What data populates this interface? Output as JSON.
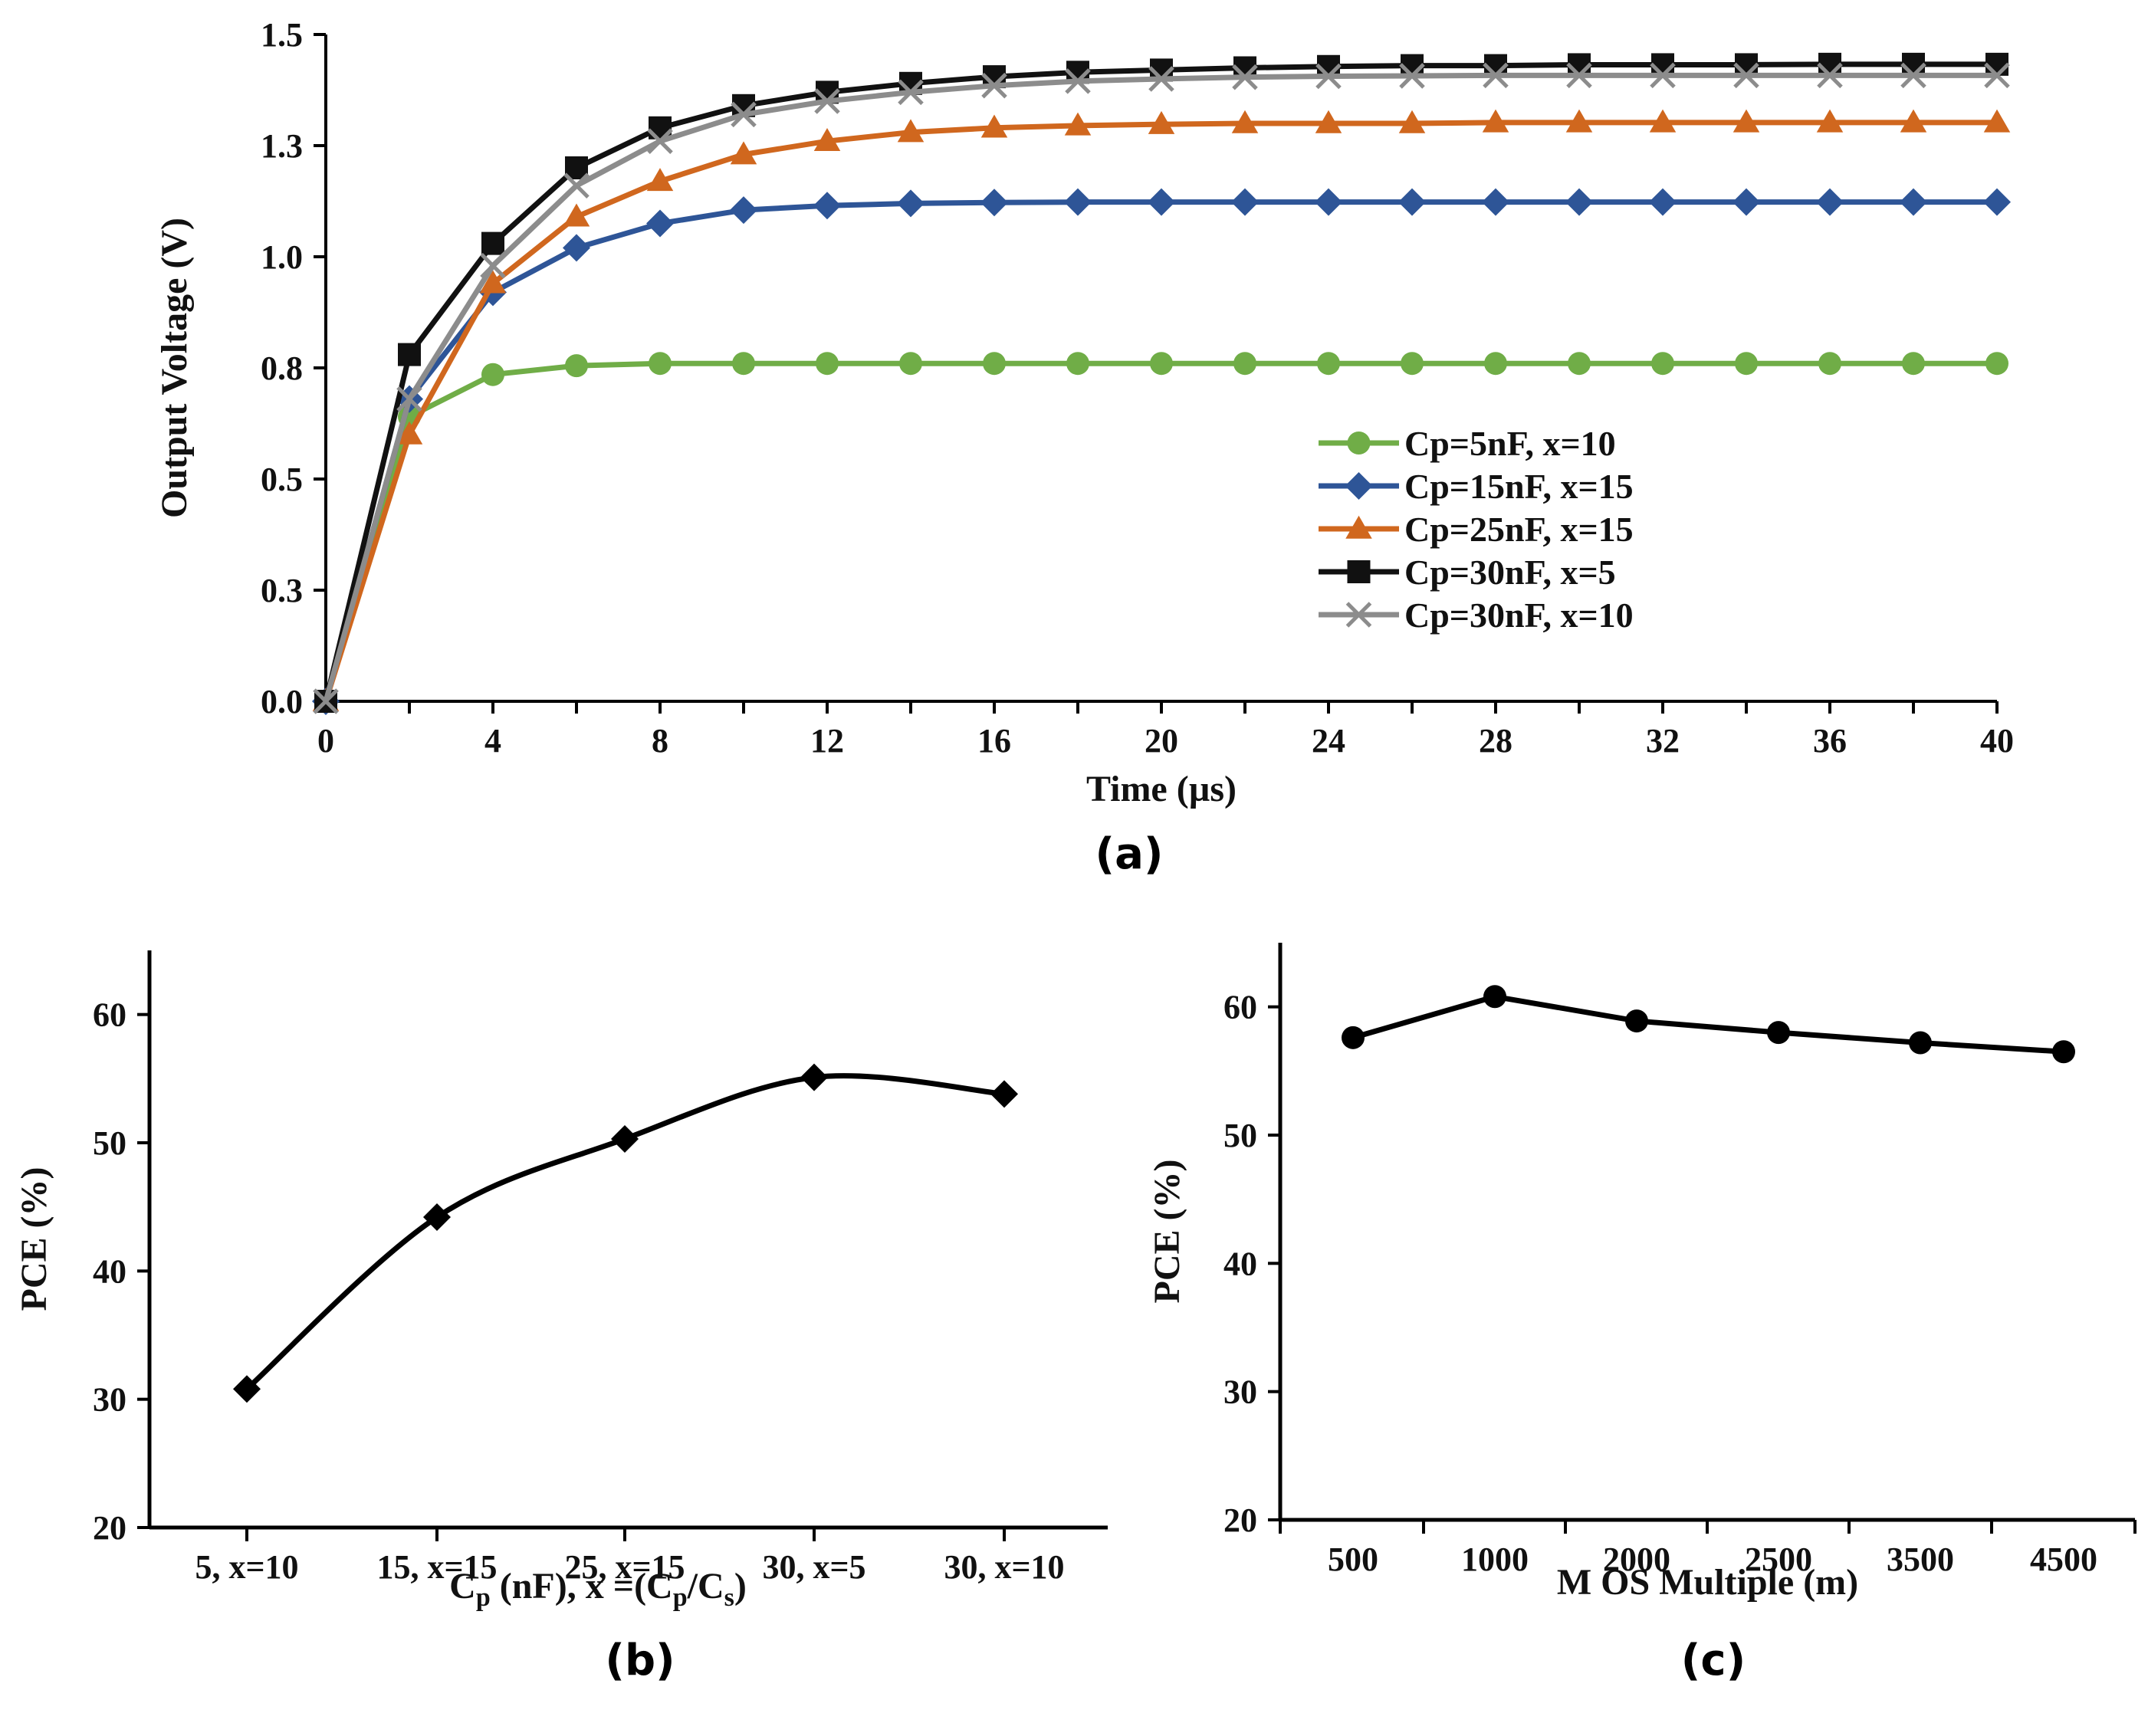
{
  "chart_data": [
    {
      "panel": "(a)",
      "type": "line",
      "xlabel": "Time (µs)",
      "ylabel": "Output Voltage  (V)",
      "xlim": [
        0,
        40
      ],
      "ylim": [
        0,
        1.5
      ],
      "xticks": [
        "0",
        "4",
        "8",
        "12",
        "16",
        "20",
        "24",
        "28",
        "32",
        "36",
        "40"
      ],
      "xtick_values": [
        0,
        4,
        8,
        12,
        16,
        20,
        24,
        28,
        32,
        36,
        40
      ],
      "yticks": [
        "0.0",
        "0.3",
        "0.5",
        "0.8",
        "1.0",
        "1.3",
        "1.5"
      ],
      "ytick_values": [
        0,
        0.25,
        0.5,
        0.75,
        1.0,
        1.25,
        1.5
      ],
      "legend_position": "center-right",
      "x": [
        0,
        2,
        4,
        6,
        8,
        10,
        12,
        14,
        16,
        18,
        20,
        22,
        24,
        26,
        28,
        30,
        32,
        34,
        36,
        38,
        40
      ],
      "series": [
        {
          "name": "Cp=5nF, x=10",
          "color": "#70ad47",
          "marker": "circle",
          "values": [
            0,
            0.64,
            0.735,
            0.755,
            0.76,
            0.76,
            0.76,
            0.76,
            0.76,
            0.76,
            0.76,
            0.76,
            0.76,
            0.76,
            0.76,
            0.76,
            0.76,
            0.76,
            0.76,
            0.76,
            0.76
          ]
        },
        {
          "name": "Cp=15nF, x=15",
          "color": "#2e5597",
          "marker": "diamond",
          "values": [
            0,
            0.68,
            0.92,
            1.02,
            1.075,
            1.105,
            1.115,
            1.12,
            1.122,
            1.123,
            1.123,
            1.123,
            1.123,
            1.123,
            1.123,
            1.123,
            1.123,
            1.123,
            1.123,
            1.123,
            1.123
          ]
        },
        {
          "name": "Cp=25nF, x=15",
          "color": "#d0671e",
          "marker": "triangle",
          "values": [
            0,
            0.6,
            0.94,
            1.09,
            1.17,
            1.23,
            1.26,
            1.28,
            1.29,
            1.295,
            1.298,
            1.3,
            1.3,
            1.3,
            1.302,
            1.302,
            1.302,
            1.302,
            1.302,
            1.302,
            1.302
          ]
        },
        {
          "name": "Cp=30nF, x=5",
          "color": "#111111",
          "marker": "square",
          "values": [
            0,
            0.78,
            1.03,
            1.2,
            1.29,
            1.34,
            1.37,
            1.39,
            1.405,
            1.415,
            1.42,
            1.425,
            1.428,
            1.43,
            1.43,
            1.432,
            1.432,
            1.432,
            1.433,
            1.433,
            1.433
          ]
        },
        {
          "name": "Cp=30nF, x=10",
          "color": "#8c8c8c",
          "marker": "x",
          "values": [
            0,
            0.68,
            0.98,
            1.16,
            1.26,
            1.32,
            1.35,
            1.37,
            1.385,
            1.395,
            1.4,
            1.404,
            1.406,
            1.407,
            1.408,
            1.408,
            1.408,
            1.408,
            1.408,
            1.408,
            1.408
          ]
        }
      ]
    },
    {
      "panel": "(b)",
      "type": "line",
      "xlabel_main": "C",
      "xlabel_sub1": "p",
      "xlabel_mid": " (nF), x =(C",
      "xlabel_sub2": "p",
      "xlabel_slash": "/C",
      "xlabel_sub3": "s",
      "xlabel_end": ")",
      "ylabel": "PCE (%)",
      "ylim": [
        20,
        65
      ],
      "yticks": [
        "20",
        "30",
        "40",
        "50",
        "60"
      ],
      "ytick_values": [
        20,
        30,
        40,
        50,
        60
      ],
      "categories": [
        "5, x=10",
        "15, x=15",
        "25, x=15",
        "30, x=5",
        "30, x=10"
      ],
      "marker": "diamond",
      "color": "#000000",
      "values": [
        30.8,
        44.2,
        50.3,
        55.1,
        53.8
      ]
    },
    {
      "panel": "(c)",
      "type": "line",
      "xlabel": "M OS Multiple (m)",
      "ylabel": "PCE (%)",
      "ylim": [
        20,
        65
      ],
      "yticks": [
        "20",
        "30",
        "40",
        "50",
        "60"
      ],
      "ytick_values": [
        20,
        30,
        40,
        50,
        60
      ],
      "categories": [
        "500",
        "1000",
        "2000",
        "2500",
        "3500",
        "4500"
      ],
      "marker": "circle",
      "color": "#000000",
      "values": [
        57.6,
        60.8,
        58.9,
        58.0,
        57.2,
        56.5
      ]
    }
  ]
}
